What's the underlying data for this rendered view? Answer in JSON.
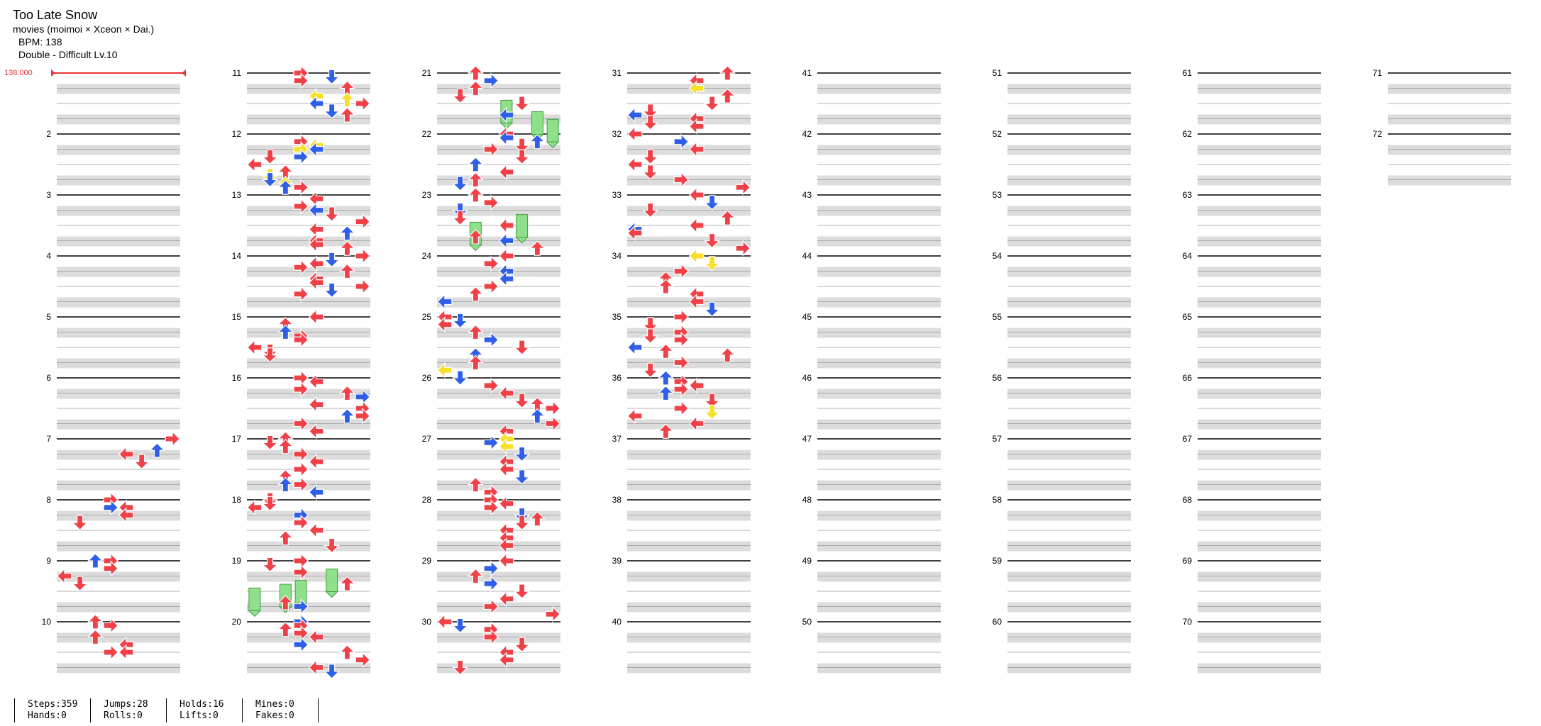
{
  "song": {
    "title": "Too Late Snow",
    "artist": "movies (moimoi × Xceon × Dai.)",
    "bpm_label": "BPM: 138",
    "difficulty_label": "Double - Difficult  Lv.10"
  },
  "bpm_change_label": "138.000",
  "colors": {
    "red": "#f04048",
    "blue": "#2f5fe8",
    "yellow": "#f5e02a",
    "hold": "#8fe08a"
  },
  "stats": [
    [
      "Steps:359",
      "Hands:0"
    ],
    [
      "Jumps:28",
      "Rolls:0"
    ],
    [
      "Holds:16",
      "Lifts:0"
    ],
    [
      "Mines:0",
      "Fakes:0"
    ]
  ],
  "measure_labels": [
    "2",
    "3",
    "4",
    "5",
    "6",
    "7",
    "8",
    "9",
    "10",
    "11",
    "12",
    "13",
    "14",
    "15",
    "16",
    "17",
    "18",
    "19",
    "20",
    "21",
    "22",
    "23",
    "24",
    "25",
    "26",
    "27",
    "28",
    "29",
    "30",
    "31",
    "32",
    "33",
    "34",
    "35",
    "36",
    "37",
    "38",
    "39",
    "40",
    "41",
    "42",
    "43",
    "44",
    "45",
    "46",
    "47",
    "48",
    "49",
    "50",
    "51",
    "52",
    "53",
    "54",
    "55",
    "56",
    "57",
    "58",
    "59",
    "60",
    "61",
    "62",
    "63",
    "64",
    "65",
    "66",
    "67",
    "68",
    "69",
    "70",
    "71",
    "72"
  ],
  "notes": [
    [
      7,
      0.0,
      7,
      "red"
    ],
    [
      7,
      0.75,
      6,
      "blue"
    ],
    [
      7,
      0.0,
      7,
      "red"
    ],
    [
      7,
      1.0,
      4,
      "red"
    ],
    [
      7,
      1.5,
      5,
      "red"
    ],
    [
      8,
      0.0,
      3,
      "red"
    ],
    [
      8,
      0.5,
      3,
      "blue"
    ],
    [
      8,
      0.5,
      4,
      "red"
    ],
    [
      8,
      1.0,
      4,
      "red"
    ],
    [
      8,
      1.5,
      1,
      "red"
    ],
    [
      9,
      0.0,
      2,
      "blue"
    ],
    [
      9,
      0.0,
      3,
      "red"
    ],
    [
      9,
      0.5,
      3,
      "red"
    ],
    [
      9,
      1.0,
      0,
      "red"
    ],
    [
      9,
      1.5,
      1,
      "red"
    ],
    [
      10,
      0.0,
      2,
      "red"
    ],
    [
      10,
      0.25,
      3,
      "red"
    ],
    [
      10,
      1.0,
      2,
      "red"
    ],
    [
      10,
      1.5,
      4,
      "red"
    ],
    [
      10,
      2.0,
      4,
      "red"
    ],
    [
      10,
      2.0,
      3,
      "red"
    ],
    [
      11,
      0.0,
      3,
      "red"
    ],
    [
      11,
      0.25,
      5,
      "blue"
    ],
    [
      11,
      0.5,
      3,
      "red"
    ],
    [
      11,
      1.0,
      6,
      "red"
    ],
    [
      11,
      1.5,
      4,
      "yellow"
    ],
    [
      11,
      1.75,
      6,
      "yellow"
    ],
    [
      11,
      2.0,
      4,
      "blue"
    ],
    [
      11,
      2.0,
      7,
      "red"
    ],
    [
      11,
      2.5,
      5,
      "blue"
    ],
    [
      11,
      2.75,
      6,
      "red"
    ],
    [
      12,
      0.5,
      3,
      "red"
    ],
    [
      12,
      0.75,
      4,
      "yellow"
    ],
    [
      12,
      1.0,
      3,
      "yellow"
    ],
    [
      12,
      1.0,
      4,
      "blue"
    ],
    [
      12,
      1.5,
      3,
      "blue"
    ],
    [
      12,
      1.5,
      1,
      "red"
    ],
    [
      12,
      2.0,
      0,
      "red"
    ],
    [
      12,
      2.5,
      2,
      "red"
    ],
    [
      12,
      2.75,
      1,
      "yellow"
    ],
    [
      12,
      3.0,
      1,
      "blue"
    ],
    [
      12,
      3.25,
      2,
      "yellow"
    ],
    [
      12,
      3.5,
      3,
      "red"
    ],
    [
      12,
      3.5,
      2,
      "blue"
    ],
    [
      13,
      0.25,
      4,
      "red"
    ],
    [
      13,
      0.75,
      3,
      "red"
    ],
    [
      13,
      1.0,
      4,
      "blue"
    ],
    [
      13,
      1.25,
      5,
      "red"
    ],
    [
      13,
      1.75,
      7,
      "red"
    ],
    [
      13,
      2.25,
      4,
      "red"
    ],
    [
      13,
      2.5,
      6,
      "blue"
    ],
    [
      13,
      3.0,
      4,
      "red"
    ],
    [
      13,
      3.25,
      4,
      "red"
    ],
    [
      13,
      3.5,
      6,
      "red"
    ],
    [
      14,
      0.0,
      7,
      "red"
    ],
    [
      14,
      0.25,
      5,
      "blue"
    ],
    [
      14,
      0.5,
      4,
      "red"
    ],
    [
      14,
      0.75,
      3,
      "red"
    ],
    [
      14,
      1.0,
      6,
      "red"
    ],
    [
      14,
      1.5,
      4,
      "red"
    ],
    [
      14,
      1.75,
      4,
      "red"
    ],
    [
      14,
      2.0,
      7,
      "red"
    ],
    [
      14,
      2.25,
      5,
      "blue"
    ],
    [
      14,
      2.5,
      3,
      "red"
    ],
    [
      15,
      0.0,
      4,
      "red"
    ],
    [
      15,
      0.5,
      2,
      "red"
    ],
    [
      15,
      1.0,
      2,
      "blue"
    ],
    [
      15,
      1.25,
      3,
      "red"
    ],
    [
      15,
      1.5,
      3,
      "red"
    ],
    [
      15,
      2.0,
      0,
      "red"
    ],
    [
      15,
      2.25,
      1,
      "red"
    ],
    [
      15,
      2.5,
      1,
      "red"
    ],
    [
      16,
      0.0,
      3,
      "red"
    ],
    [
      16,
      0.25,
      4,
      "red"
    ],
    [
      16,
      0.75,
      3,
      "red"
    ],
    [
      16,
      1.0,
      6,
      "red"
    ],
    [
      16,
      1.25,
      7,
      "blue"
    ],
    [
      16,
      1.75,
      4,
      "red"
    ],
    [
      16,
      2.0,
      7,
      "red"
    ],
    [
      16,
      2.5,
      6,
      "blue"
    ],
    [
      16,
      2.5,
      7,
      "red"
    ],
    [
      16,
      3.0,
      3,
      "red"
    ],
    [
      16,
      3.5,
      4,
      "red"
    ],
    [
      17,
      0.0,
      2,
      "red"
    ],
    [
      17,
      0.25,
      1,
      "red"
    ],
    [
      17,
      0.5,
      2,
      "red"
    ],
    [
      17,
      1.0,
      3,
      "blue"
    ],
    [
      17,
      1.0,
      3,
      "red"
    ],
    [
      17,
      1.5,
      4,
      "red"
    ],
    [
      17,
      2.0,
      3,
      "red"
    ],
    [
      17,
      2.5,
      2,
      "red"
    ],
    [
      17,
      3.0,
      2,
      "blue"
    ],
    [
      17,
      3.0,
      3,
      "red"
    ],
    [
      17,
      3.5,
      4,
      "blue"
    ],
    [
      18,
      0.0,
      1,
      "red"
    ],
    [
      18,
      0.25,
      1,
      "red"
    ],
    [
      18,
      0.5,
      0,
      "red"
    ],
    [
      18,
      1.0,
      3,
      "blue"
    ],
    [
      18,
      1.5,
      3,
      "red"
    ],
    [
      18,
      2.0,
      4,
      "red"
    ],
    [
      18,
      2.5,
      2,
      "red"
    ],
    [
      18,
      3.0,
      5,
      "red"
    ],
    [
      19,
      0.0,
      3,
      "red"
    ],
    [
      19,
      0.25,
      1,
      "red"
    ],
    [
      19,
      0.75,
      3,
      "red"
    ],
    [
      19,
      1.0,
      5,
      "green"
    ],
    [
      19,
      1.5,
      6,
      "red"
    ],
    [
      19,
      1.75,
      3,
      "green"
    ],
    [
      19,
      2.0,
      2,
      "green"
    ],
    [
      19,
      2.25,
      0,
      "green"
    ],
    [
      19,
      2.75,
      2,
      "red"
    ],
    [
      19,
      3.0,
      3,
      "blue"
    ],
    [
      20,
      0.0,
      3,
      "blue"
    ],
    [
      20,
      0.25,
      3,
      "red"
    ],
    [
      20,
      0.5,
      2,
      "red"
    ],
    [
      20,
      0.75,
      3,
      "red"
    ],
    [
      20,
      1.0,
      4,
      "red"
    ],
    [
      20,
      1.5,
      3,
      "blue"
    ],
    [
      20,
      2.0,
      6,
      "red"
    ],
    [
      20,
      2.5,
      7,
      "red"
    ],
    [
      20,
      3.0,
      4,
      "red"
    ],
    [
      20,
      3.25,
      5,
      "blue"
    ],
    [
      21,
      0.0,
      2,
      "red"
    ],
    [
      21,
      0.5,
      3,
      "blue"
    ],
    [
      21,
      1.0,
      2,
      "red"
    ],
    [
      21,
      1.5,
      1,
      "red"
    ],
    [
      21,
      2.0,
      5,
      "red"
    ],
    [
      21,
      2.25,
      4,
      "green"
    ],
    [
      21,
      2.75,
      4,
      "blue"
    ],
    [
      21,
      3.0,
      6,
      "green"
    ],
    [
      21,
      3.5,
      7,
      "green"
    ],
    [
      22,
      0.0,
      4,
      "red"
    ],
    [
      22,
      0.25,
      4,
      "blue"
    ],
    [
      22,
      0.5,
      6,
      "blue"
    ],
    [
      22,
      0.75,
      5,
      "red"
    ],
    [
      22,
      1.0,
      3,
      "red"
    ],
    [
      22,
      1.5,
      5,
      "red"
    ],
    [
      22,
      2.0,
      2,
      "blue"
    ],
    [
      22,
      2.5,
      4,
      "red"
    ],
    [
      22,
      3.0,
      2,
      "red"
    ],
    [
      22,
      3.25,
      1,
      "blue"
    ],
    [
      23,
      0.0,
      2,
      "red"
    ],
    [
      23,
      0.5,
      3,
      "red"
    ],
    [
      23,
      1.0,
      1,
      "blue"
    ],
    [
      23,
      1.5,
      1,
      "red"
    ],
    [
      23,
      1.75,
      5,
      "green"
    ],
    [
      23,
      2.0,
      4,
      "red"
    ],
    [
      23,
      2.25,
      2,
      "green"
    ],
    [
      23,
      2.75,
      2,
      "red"
    ],
    [
      23,
      3.0,
      4,
      "blue"
    ],
    [
      23,
      3.5,
      6,
      "red"
    ],
    [
      24,
      0.0,
      4,
      "red"
    ],
    [
      24,
      0.5,
      3,
      "red"
    ],
    [
      24,
      1.0,
      4,
      "blue"
    ],
    [
      24,
      1.5,
      4,
      "blue"
    ],
    [
      24,
      2.0,
      3,
      "red"
    ],
    [
      24,
      2.5,
      2,
      "red"
    ],
    [
      24,
      3.0,
      0,
      "blue"
    ],
    [
      25,
      0.0,
      0,
      "red"
    ],
    [
      25,
      0.25,
      1,
      "blue"
    ],
    [
      25,
      0.5,
      0,
      "red"
    ],
    [
      25,
      1.0,
      2,
      "red"
    ],
    [
      25,
      1.5,
      3,
      "blue"
    ],
    [
      25,
      2.0,
      5,
      "red"
    ],
    [
      25,
      2.5,
      2,
      "blue"
    ],
    [
      25,
      3.0,
      2,
      "red"
    ],
    [
      25,
      3.5,
      0,
      "yellow"
    ],
    [
      26,
      0.0,
      1,
      "blue"
    ],
    [
      26,
      0.5,
      3,
      "red"
    ],
    [
      26,
      1.0,
      4,
      "red"
    ],
    [
      26,
      1.5,
      5,
      "red"
    ],
    [
      26,
      1.75,
      6,
      "red"
    ],
    [
      26,
      2.0,
      7,
      "red"
    ],
    [
      26,
      2.5,
      6,
      "blue"
    ],
    [
      26,
      3.0,
      7,
      "red"
    ],
    [
      26,
      3.5,
      4,
      "red"
    ],
    [
      27,
      0.0,
      4,
      "yellow"
    ],
    [
      27,
      0.25,
      3,
      "blue"
    ],
    [
      27,
      0.5,
      4,
      "yellow"
    ],
    [
      27,
      1.0,
      5,
      "blue"
    ],
    [
      27,
      1.5,
      4,
      "red"
    ],
    [
      27,
      2.0,
      4,
      "red"
    ],
    [
      27,
      2.5,
      5,
      "blue"
    ],
    [
      27,
      3.0,
      2,
      "red"
    ],
    [
      27,
      3.5,
      3,
      "red"
    ],
    [
      28,
      0.0,
      3,
      "red"
    ],
    [
      28,
      0.25,
      4,
      "red"
    ],
    [
      28,
      0.5,
      3,
      "red"
    ],
    [
      28,
      1.0,
      5,
      "blue"
    ],
    [
      28,
      1.25,
      6,
      "red"
    ],
    [
      28,
      1.5,
      5,
      "red"
    ],
    [
      28,
      2.0,
      4,
      "red"
    ],
    [
      28,
      2.5,
      4,
      "red"
    ],
    [
      28,
      3.0,
      4,
      "red"
    ],
    [
      29,
      0.0,
      4,
      "red"
    ],
    [
      29,
      0.5,
      3,
      "blue"
    ],
    [
      29,
      1.0,
      2,
      "red"
    ],
    [
      29,
      1.5,
      3,
      "blue"
    ],
    [
      29,
      2.0,
      5,
      "red"
    ],
    [
      29,
      2.5,
      4,
      "red"
    ],
    [
      29,
      3.0,
      3,
      "red"
    ],
    [
      29,
      3.5,
      7,
      "red"
    ],
    [
      30,
      0.0,
      0,
      "red"
    ],
    [
      30,
      0.25,
      1,
      "blue"
    ],
    [
      30,
      0.5,
      3,
      "red"
    ],
    [
      30,
      1.0,
      3,
      "red"
    ],
    [
      30,
      1.5,
      5,
      "red"
    ],
    [
      30,
      2.0,
      4,
      "red"
    ],
    [
      30,
      2.5,
      4,
      "red"
    ],
    [
      30,
      3.0,
      1,
      "red"
    ],
    [
      31,
      0.0,
      6,
      "red"
    ],
    [
      31,
      0.5,
      4,
      "red"
    ],
    [
      31,
      1.0,
      4,
      "yellow"
    ],
    [
      31,
      1.5,
      6,
      "red"
    ],
    [
      31,
      2.0,
      5,
      "red"
    ],
    [
      31,
      2.5,
      1,
      "red"
    ],
    [
      31,
      2.75,
      0,
      "blue"
    ],
    [
      31,
      3.0,
      4,
      "red"
    ],
    [
      31,
      3.25,
      1,
      "red"
    ],
    [
      31,
      3.5,
      4,
      "red"
    ],
    [
      32,
      0.0,
      0,
      "red"
    ],
    [
      32,
      0.5,
      3,
      "blue"
    ],
    [
      32,
      1.0,
      4,
      "red"
    ],
    [
      32,
      1.5,
      1,
      "red"
    ],
    [
      32,
      2.0,
      0,
      "red"
    ],
    [
      32,
      2.5,
      1,
      "red"
    ],
    [
      32,
      3.0,
      3,
      "red"
    ],
    [
      32,
      3.5,
      7,
      "red"
    ],
    [
      33,
      0.0,
      4,
      "red"
    ],
    [
      33,
      0.5,
      5,
      "blue"
    ],
    [
      33,
      1.0,
      1,
      "red"
    ],
    [
      33,
      1.5,
      6,
      "red"
    ],
    [
      33,
      2.0,
      4,
      "red"
    ],
    [
      33,
      2.25,
      0,
      "blue"
    ],
    [
      33,
      2.5,
      0,
      "red"
    ],
    [
      33,
      3.0,
      5,
      "red"
    ],
    [
      33,
      3.5,
      7,
      "red"
    ],
    [
      34,
      0.0,
      4,
      "yellow"
    ],
    [
      34,
      0.5,
      5,
      "yellow"
    ],
    [
      34,
      1.0,
      3,
      "red"
    ],
    [
      34,
      1.5,
      2,
      "red"
    ],
    [
      34,
      2.0,
      2,
      "red"
    ],
    [
      34,
      2.5,
      4,
      "red"
    ],
    [
      34,
      3.0,
      4,
      "red"
    ],
    [
      34,
      3.5,
      5,
      "blue"
    ],
    [
      35,
      0.0,
      3,
      "red"
    ],
    [
      35,
      0.5,
      1,
      "red"
    ],
    [
      35,
      1.0,
      3,
      "red"
    ],
    [
      35,
      1.25,
      1,
      "red"
    ],
    [
      35,
      1.5,
      3,
      "red"
    ],
    [
      35,
      2.0,
      0,
      "blue"
    ],
    [
      35,
      2.25,
      2,
      "red"
    ],
    [
      35,
      2.5,
      6,
      "red"
    ],
    [
      35,
      3.0,
      3,
      "red"
    ],
    [
      35,
      3.5,
      1,
      "red"
    ],
    [
      36,
      0.0,
      2,
      "blue"
    ],
    [
      36,
      0.25,
      3,
      "red"
    ],
    [
      36,
      0.5,
      4,
      "red"
    ],
    [
      36,
      0.75,
      3,
      "red"
    ],
    [
      36,
      1.0,
      2,
      "blue"
    ],
    [
      36,
      1.5,
      5,
      "red"
    ],
    [
      36,
      2.0,
      3,
      "red"
    ],
    [
      36,
      2.25,
      5,
      "yellow"
    ],
    [
      36,
      2.5,
      0,
      "red"
    ],
    [
      36,
      3.0,
      4,
      "red"
    ],
    [
      36,
      3.5,
      2,
      "red"
    ]
  ]
}
